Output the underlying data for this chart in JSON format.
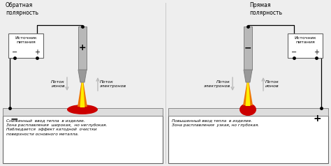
{
  "title_left": "Обратная\nполярность",
  "title_right": "Прямая\nполярность",
  "label_source": "Источник\nпитания",
  "label_ions_left": "Поток\nионов",
  "label_electrons_left": "Поток\nэлектронов",
  "label_ions_right": "Поток\nионов",
  "label_electrons_right": "Поток\nэлектронов",
  "text_left": "Сниженный  ввод тепла  в изделие.\nЗона расплавления  широкая,  но неглубокая.\nНаблюдается  эффект катодной  очистки\nповерхности основного металла.",
  "text_right": "Повышенный ввод тепла  в изделие.\nЗона расплавления  узкая, но глубокая.",
  "bg_color": "#eeeeee",
  "box_facecolor": "#ffffff",
  "electrode_body_color": "#b8b8b8",
  "electrode_edge_color": "#808080",
  "electrode_tip_color": "#999999",
  "flame_orange": "#ee7700",
  "flame_yellow": "#ffee00",
  "pool_color": "#cc0000",
  "source_box_color": "#ffffff",
  "wire_color": "#000000",
  "arrow_color": "#bbbbbb",
  "workpiece_color": "#dddddd",
  "workpiece_edge": "#888888"
}
